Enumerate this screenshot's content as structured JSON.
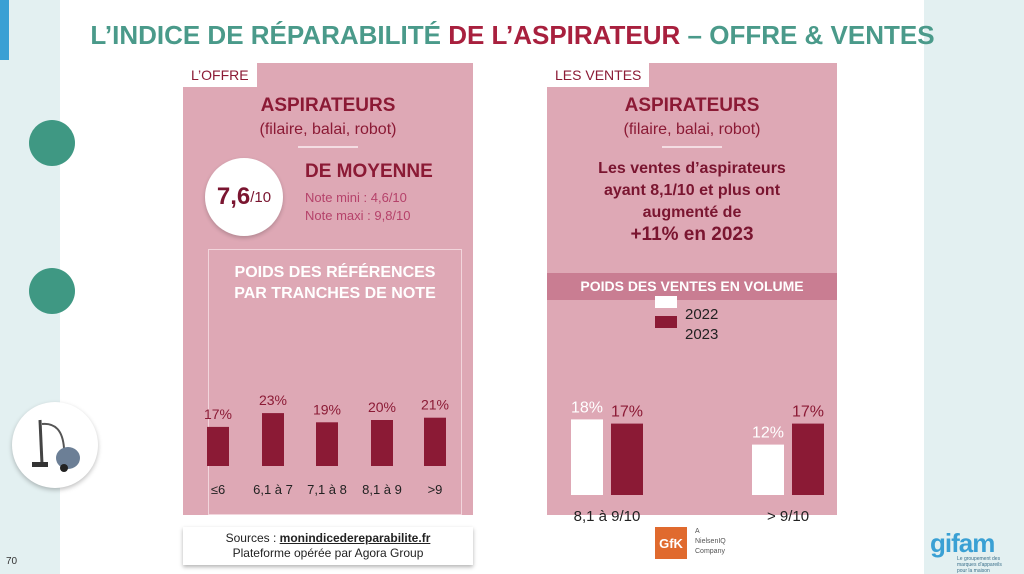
{
  "title": {
    "part1": "L’INDICE DE RÉPARABILITÉ ",
    "part2": "DE L’ASPIRATEUR",
    "part3": " – OFFRE & VENTES"
  },
  "page_number": "70",
  "offre": {
    "tab": "L’OFFRE",
    "heading": "ASPIRATEURS",
    "subheading": "(filaire, balai, robot)",
    "score": "7,6",
    "score_suffix": "/10",
    "moyenne": "DE MOYENNE",
    "note_mini": "Note mini : 4,6/10",
    "note_maxi": "Note maxi : 9,8/10",
    "chart_title_1": "POIDS DES RÉFÉRENCES",
    "chart_title_2": "PAR TRANCHES DE NOTE"
  },
  "ventes": {
    "tab": "LES VENTES",
    "heading": "ASPIRATEURS",
    "subheading": "(filaire, balai, robot)",
    "line1": "Les ventes d’aspirateurs",
    "line2": "ayant 8,1/10 et plus ont",
    "line3": "augmenté de",
    "highlight": "+11% en 2023",
    "band": "POIDS DES VENTES EN VOLUME"
  },
  "sources": {
    "label": "Sources : ",
    "link": "monindicedereparabilite.fr",
    "line2": "Plateforme opérée par Agora Group"
  },
  "logos": {
    "gfk": "GfK",
    "gfk_sub": [
      "A",
      "NielsenIQ",
      "Company"
    ],
    "gifam": "gifam",
    "gifam_sub": "Le groupement des marques d'appareils pour la maison"
  },
  "colors": {
    "teal": "#4a9a8a",
    "accent": "#a8203e",
    "panel": "#dea8b5",
    "bar_dark": "#8b1a35",
    "bar_light": "#ffffff"
  },
  "chart_data": [
    {
      "type": "bar",
      "title": "POIDS DES RÉFÉRENCES PAR TRANCHES DE NOTE",
      "categories": [
        "≤6",
        "6,1 à 7",
        "7,1 à 8",
        "8,1 à 9",
        ">9"
      ],
      "values": [
        17,
        23,
        19,
        20,
        21
      ],
      "value_labels": [
        "17%",
        "23%",
        "19%",
        "20%",
        "21%"
      ],
      "unit": "%"
    },
    {
      "type": "bar",
      "title": "POIDS DES VENTES EN VOLUME",
      "categories": [
        "8,1 à 9/10",
        "> 9/10"
      ],
      "series": [
        {
          "name": "2022",
          "values": [
            18,
            12
          ],
          "labels": [
            "18%",
            "12%"
          ],
          "color": "#ffffff"
        },
        {
          "name": "2023",
          "values": [
            17,
            17
          ],
          "labels": [
            "17%",
            "17%"
          ],
          "color": "#8b1a35"
        }
      ],
      "legend": "bottom",
      "unit": "%"
    }
  ]
}
